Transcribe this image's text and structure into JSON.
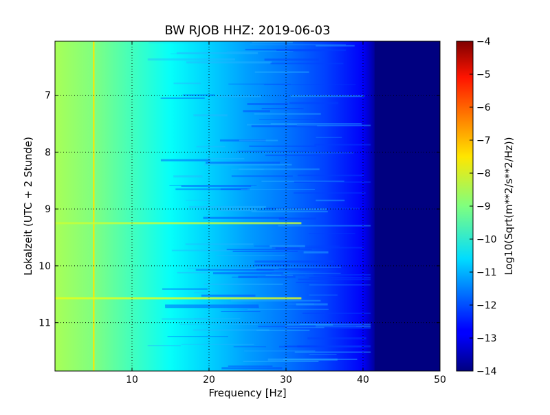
{
  "chart_data": {
    "type": "heatmap",
    "title": "BW RJOB HHZ: 2019-06-03",
    "xlabel": "Frequency [Hz]",
    "ylabel": "Lokalzeit (UTC + 2 Stunde)",
    "xlim": [
      0,
      50
    ],
    "ylim": [
      11.85,
      6.05
    ],
    "y_axis_inverted": true,
    "x_ticks": [
      10,
      20,
      30,
      40,
      50
    ],
    "x_tick_labels": [
      "10",
      "20",
      "30",
      "40",
      "50"
    ],
    "y_ticks": [
      7,
      8,
      9,
      10,
      11
    ],
    "y_tick_labels": [
      "7",
      "8",
      "9",
      "10",
      "11"
    ],
    "grid": true,
    "grid_style": "dotted",
    "colormap": "jet",
    "colorbar": {
      "label": "Log10(Sqrt(m**2/s**2/Hz))",
      "range": [
        -14,
        -4
      ],
      "ticks": [
        -4,
        -5,
        -6,
        -7,
        -8,
        -9,
        -10,
        -11,
        -12,
        -13,
        -14
      ],
      "tick_labels": [
        "−4",
        "−5",
        "−6",
        "−7",
        "−8",
        "−9",
        "−10",
        "−11",
        "−12",
        "−13",
        "−14"
      ]
    },
    "spectral_profile": {
      "frequency_hz": [
        0,
        5,
        10,
        15,
        20,
        25,
        30,
        35,
        40,
        42,
        50
      ],
      "level": [
        -8.6,
        -9.0,
        -9.6,
        -10.2,
        -10.7,
        -11.2,
        -11.6,
        -12.1,
        -12.8,
        -14,
        -14
      ]
    },
    "features": [
      {
        "name": "narrowband line",
        "frequency_hz": 5.0,
        "level": -7.5
      },
      {
        "name": "broadband burst",
        "time": 9.25,
        "level": -8.3
      },
      {
        "name": "broadband burst",
        "time": 10.57,
        "level": -8.0
      },
      {
        "name": "noise floor cutoff",
        "frequency_hz": 41.5,
        "level": -14
      }
    ]
  }
}
